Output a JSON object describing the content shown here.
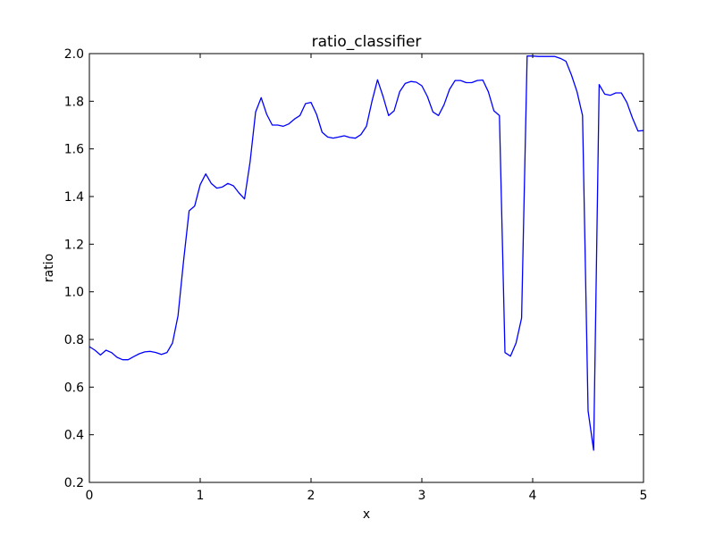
{
  "chart_data": {
    "type": "line",
    "title": "ratio_classifier",
    "xlabel": "x",
    "ylabel": "ratio",
    "xlim": [
      0,
      5
    ],
    "ylim": [
      0.2,
      2.0
    ],
    "xticks": [
      0,
      1,
      2,
      3,
      4,
      5
    ],
    "yticks": [
      0.2,
      0.4,
      0.6,
      0.8,
      1.0,
      1.2,
      1.4,
      1.6,
      1.8,
      2.0
    ],
    "xtick_labels": [
      "0",
      "1",
      "2",
      "3",
      "4",
      "5"
    ],
    "ytick_labels": [
      "0.2",
      "0.4",
      "0.6",
      "0.8",
      "1.0",
      "1.2",
      "1.4",
      "1.6",
      "1.8",
      "2.0"
    ],
    "grid": false,
    "line_color": "#0000ff",
    "series": [
      {
        "x": [
          0.0,
          0.05,
          0.1,
          0.15,
          0.2,
          0.25,
          0.3,
          0.35,
          0.4,
          0.45,
          0.5,
          0.55,
          0.6,
          0.65,
          0.7,
          0.75,
          0.8,
          0.85,
          0.9,
          0.95,
          1.0,
          1.05,
          1.1,
          1.15,
          1.2,
          1.25,
          1.3,
          1.35,
          1.4,
          1.45,
          1.5,
          1.55,
          1.6,
          1.65,
          1.7,
          1.75,
          1.8,
          1.85,
          1.9,
          1.95,
          2.0,
          2.05,
          2.1,
          2.15,
          2.2,
          2.25,
          2.3,
          2.35,
          2.4,
          2.45,
          2.5,
          2.55,
          2.6,
          2.65,
          2.7,
          2.75,
          2.8,
          2.85,
          2.9,
          2.95,
          3.0,
          3.05,
          3.1,
          3.15,
          3.2,
          3.25,
          3.3,
          3.35,
          3.4,
          3.45,
          3.5,
          3.55,
          3.6,
          3.65,
          3.7,
          3.75,
          3.8,
          3.85,
          3.9,
          3.95,
          4.0,
          4.05,
          4.1,
          4.15,
          4.2,
          4.25,
          4.3,
          4.35,
          4.4,
          4.45,
          4.5,
          4.55,
          4.6,
          4.65,
          4.7,
          4.75,
          4.8,
          4.85,
          4.9,
          4.95,
          5.0
        ],
        "y": [
          0.77,
          0.755,
          0.735,
          0.755,
          0.745,
          0.725,
          0.715,
          0.715,
          0.728,
          0.74,
          0.748,
          0.75,
          0.745,
          0.737,
          0.745,
          0.785,
          0.9,
          1.13,
          1.34,
          1.36,
          1.45,
          1.495,
          1.455,
          1.435,
          1.44,
          1.455,
          1.445,
          1.415,
          1.39,
          1.545,
          1.755,
          1.815,
          1.745,
          1.7,
          1.7,
          1.695,
          1.705,
          1.725,
          1.74,
          1.79,
          1.795,
          1.745,
          1.67,
          1.65,
          1.645,
          1.65,
          1.655,
          1.648,
          1.645,
          1.66,
          1.695,
          1.8,
          1.89,
          1.82,
          1.74,
          1.76,
          1.84,
          1.875,
          1.883,
          1.88,
          1.865,
          1.82,
          1.755,
          1.74,
          1.785,
          1.85,
          1.887,
          1.887,
          1.878,
          1.878,
          1.887,
          1.889,
          1.84,
          1.76,
          1.74,
          0.745,
          0.73,
          0.785,
          0.89,
          1.99,
          1.99,
          1.988,
          1.988,
          1.988,
          1.988,
          1.98,
          1.968,
          1.91,
          1.84,
          1.74,
          0.5,
          0.335,
          1.87,
          1.83,
          1.825,
          1.835,
          1.835,
          1.795,
          1.73,
          1.675,
          1.677
        ]
      }
    ]
  }
}
